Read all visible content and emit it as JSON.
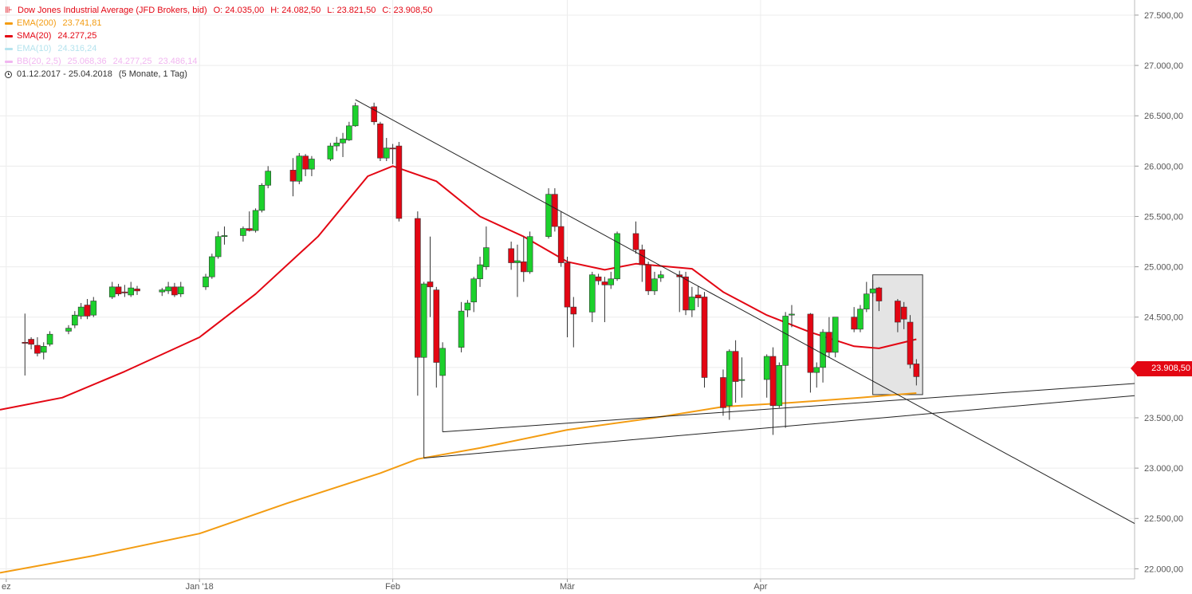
{
  "legend": {
    "title": "Dow Jones Industrial Average (JFD Brokers, bid)",
    "title_color": "#e30613",
    "ohlc": [
      {
        "label": "O:",
        "value": "24.035,00"
      },
      {
        "label": "H:",
        "value": "24.082,50"
      },
      {
        "label": "L:",
        "value": "23.821,50"
      },
      {
        "label": "C:",
        "value": "23.908,50"
      }
    ],
    "indicators": [
      {
        "name": "EMA(200)",
        "values": [
          "23.741,81"
        ],
        "color": "#f39c12"
      },
      {
        "name": "SMA(20)",
        "values": [
          "24.277,25"
        ],
        "color": "#e30613"
      },
      {
        "name": "EMA(10)",
        "values": [
          "24.316,24"
        ],
        "color": "#b5e3ee"
      },
      {
        "name": "BB(20, 2,5)",
        "values": [
          "25.068,36",
          "24.277,25",
          "23.486,14"
        ],
        "color": "#f1b6f0"
      }
    ],
    "period": "01.12.2017 - 25.04.2018",
    "period_detail": "(5 Monate, 1 Tag)"
  },
  "price_tag": "23.908,50",
  "chart_data": {
    "type": "candlestick",
    "y_axis": {
      "ticks": [
        22000,
        22500,
        23000,
        23500,
        24000,
        24500,
        25000,
        25500,
        26000,
        26500,
        27000,
        27500
      ],
      "tick_labels": [
        "22.000,00",
        "22.500,00",
        "23.000,00",
        "23.500,00",
        "24.000,00",
        "24.500,00",
        "25.000,00",
        "25.500,00",
        "26.000,00",
        "26.500,00",
        "27.000,00",
        "27.500,00"
      ],
      "ylim": [
        21900,
        27650
      ],
      "position": "right"
    },
    "x_axis": {
      "tick_labels": [
        "ez",
        "Jan '18",
        "Feb",
        "Mär",
        "Apr"
      ],
      "tick_dates": [
        "2017-12-01",
        "2018-01-01",
        "2018-02-01",
        "2018-03-01",
        "2018-04-01"
      ],
      "range": [
        "2017-11-30",
        "2018-05-31"
      ]
    },
    "grid": true,
    "candles": [
      {
        "date": "2017-12-04",
        "o": 24250,
        "h": 24535,
        "l": 23920,
        "c": 24240
      },
      {
        "date": "2017-12-05",
        "o": 24280,
        "h": 24300,
        "l": 24180,
        "c": 24230
      },
      {
        "date": "2017-12-06",
        "o": 24220,
        "h": 24300,
        "l": 24110,
        "c": 24140
      },
      {
        "date": "2017-12-07",
        "o": 24150,
        "h": 24250,
        "l": 24080,
        "c": 24210
      },
      {
        "date": "2017-12-08",
        "o": 24230,
        "h": 24360,
        "l": 24210,
        "c": 24330
      },
      {
        "date": "2017-12-11",
        "o": 24360,
        "h": 24420,
        "l": 24330,
        "c": 24390
      },
      {
        "date": "2017-12-12",
        "o": 24420,
        "h": 24560,
        "l": 24390,
        "c": 24520
      },
      {
        "date": "2017-12-13",
        "o": 24510,
        "h": 24640,
        "l": 24480,
        "c": 24600
      },
      {
        "date": "2017-12-14",
        "o": 24620,
        "h": 24680,
        "l": 24480,
        "c": 24510
      },
      {
        "date": "2017-12-15",
        "o": 24520,
        "h": 24700,
        "l": 24500,
        "c": 24660
      },
      {
        "date": "2017-12-18",
        "o": 24700,
        "h": 24850,
        "l": 24680,
        "c": 24800
      },
      {
        "date": "2017-12-19",
        "o": 24800,
        "h": 24830,
        "l": 24710,
        "c": 24730
      },
      {
        "date": "2017-12-20",
        "o": 24750,
        "h": 24820,
        "l": 24700,
        "c": 24740
      },
      {
        "date": "2017-12-21",
        "o": 24720,
        "h": 24850,
        "l": 24700,
        "c": 24790
      },
      {
        "date": "2017-12-22",
        "o": 24780,
        "h": 24810,
        "l": 24720,
        "c": 24760
      },
      {
        "date": "2017-12-26",
        "o": 24750,
        "h": 24790,
        "l": 24710,
        "c": 24770
      },
      {
        "date": "2017-12-27",
        "o": 24760,
        "h": 24850,
        "l": 24730,
        "c": 24800
      },
      {
        "date": "2017-12-28",
        "o": 24800,
        "h": 24840,
        "l": 24700,
        "c": 24720
      },
      {
        "date": "2017-12-29",
        "o": 24730,
        "h": 24850,
        "l": 24700,
        "c": 24800
      },
      {
        "date": "2018-01-02",
        "o": 24800,
        "h": 24930,
        "l": 24770,
        "c": 24900
      },
      {
        "date": "2018-01-03",
        "o": 24900,
        "h": 25130,
        "l": 24880,
        "c": 25100
      },
      {
        "date": "2018-01-04",
        "o": 25100,
        "h": 25350,
        "l": 25080,
        "c": 25300
      },
      {
        "date": "2018-01-05",
        "o": 25300,
        "h": 25400,
        "l": 25220,
        "c": 25310
      },
      {
        "date": "2018-01-08",
        "o": 25310,
        "h": 25400,
        "l": 25250,
        "c": 25380
      },
      {
        "date": "2018-01-09",
        "o": 25380,
        "h": 25550,
        "l": 25350,
        "c": 25360
      },
      {
        "date": "2018-01-10",
        "o": 25360,
        "h": 25580,
        "l": 25340,
        "c": 25560
      },
      {
        "date": "2018-01-11",
        "o": 25560,
        "h": 25830,
        "l": 25540,
        "c": 25810
      },
      {
        "date": "2018-01-12",
        "o": 25810,
        "h": 26000,
        "l": 25780,
        "c": 25950
      },
      {
        "date": "2018-01-16",
        "o": 25960,
        "h": 26080,
        "l": 25700,
        "c": 25850
      },
      {
        "date": "2018-01-17",
        "o": 25850,
        "h": 26130,
        "l": 25820,
        "c": 26100
      },
      {
        "date": "2018-01-18",
        "o": 26100,
        "h": 26120,
        "l": 25900,
        "c": 25970
      },
      {
        "date": "2018-01-19",
        "o": 25970,
        "h": 26100,
        "l": 25900,
        "c": 26070
      },
      {
        "date": "2018-01-22",
        "o": 26070,
        "h": 26230,
        "l": 26050,
        "c": 26200
      },
      {
        "date": "2018-01-23",
        "o": 26200,
        "h": 26290,
        "l": 26150,
        "c": 26230
      },
      {
        "date": "2018-01-24",
        "o": 26230,
        "h": 26330,
        "l": 26090,
        "c": 26270
      },
      {
        "date": "2018-01-25",
        "o": 26260,
        "h": 26440,
        "l": 26250,
        "c": 26400
      },
      {
        "date": "2018-01-26",
        "o": 26400,
        "h": 26630,
        "l": 26390,
        "c": 26600
      },
      {
        "date": "2018-01-29",
        "o": 26590,
        "h": 26630,
        "l": 26410,
        "c": 26440
      },
      {
        "date": "2018-01-30",
        "o": 26420,
        "h": 26440,
        "l": 26050,
        "c": 26080
      },
      {
        "date": "2018-01-31",
        "o": 26080,
        "h": 26280,
        "l": 26050,
        "c": 26180
      },
      {
        "date": "2018-02-01",
        "o": 26180,
        "h": 26220,
        "l": 26020,
        "c": 26170
      },
      {
        "date": "2018-02-02",
        "o": 26200,
        "h": 26240,
        "l": 25450,
        "c": 25480
      },
      {
        "date": "2018-02-05",
        "o": 25480,
        "h": 25550,
        "l": 23720,
        "c": 24100
      },
      {
        "date": "2018-02-06",
        "o": 24100,
        "h": 24850,
        "l": 23100,
        "c": 24830
      },
      {
        "date": "2018-02-07",
        "o": 24850,
        "h": 25300,
        "l": 24500,
        "c": 24800
      },
      {
        "date": "2018-02-08",
        "o": 24770,
        "h": 24800,
        "l": 23800,
        "c": 24050
      },
      {
        "date": "2018-02-09",
        "o": 23920,
        "h": 24250,
        "l": 23360,
        "c": 24190
      },
      {
        "date": "2018-02-12",
        "o": 24200,
        "h": 24650,
        "l": 24150,
        "c": 24560
      },
      {
        "date": "2018-02-13",
        "o": 24570,
        "h": 24670,
        "l": 24500,
        "c": 24640
      },
      {
        "date": "2018-02-14",
        "o": 24650,
        "h": 24900,
        "l": 24550,
        "c": 24880
      },
      {
        "date": "2018-02-15",
        "o": 24880,
        "h": 25100,
        "l": 24800,
        "c": 25020
      },
      {
        "date": "2018-02-16",
        "o": 25000,
        "h": 25400,
        "l": 24970,
        "c": 25190
      },
      {
        "date": "2018-02-20",
        "o": 25180,
        "h": 25250,
        "l": 24970,
        "c": 25040
      },
      {
        "date": "2018-02-21",
        "o": 25040,
        "h": 25220,
        "l": 24700,
        "c": 25060
      },
      {
        "date": "2018-02-22",
        "o": 25050,
        "h": 25300,
        "l": 24850,
        "c": 24950
      },
      {
        "date": "2018-02-23",
        "o": 24950,
        "h": 25350,
        "l": 24930,
        "c": 25300
      },
      {
        "date": "2018-02-26",
        "o": 25300,
        "h": 25780,
        "l": 25280,
        "c": 25720
      },
      {
        "date": "2018-02-27",
        "o": 25720,
        "h": 25780,
        "l": 25350,
        "c": 25400
      },
      {
        "date": "2018-02-28",
        "o": 25400,
        "h": 25550,
        "l": 25000,
        "c": 25040
      },
      {
        "date": "2018-03-01",
        "o": 25040,
        "h": 25100,
        "l": 24300,
        "c": 24600
      },
      {
        "date": "2018-03-02",
        "o": 24600,
        "h": 24700,
        "l": 24200,
        "c": 24530
      },
      {
        "date": "2018-03-05",
        "o": 24550,
        "h": 24950,
        "l": 24450,
        "c": 24920
      },
      {
        "date": "2018-03-06",
        "o": 24900,
        "h": 24930,
        "l": 24820,
        "c": 24860
      },
      {
        "date": "2018-03-07",
        "o": 24850,
        "h": 24900,
        "l": 24450,
        "c": 24820
      },
      {
        "date": "2018-03-08",
        "o": 24820,
        "h": 24950,
        "l": 24780,
        "c": 24880
      },
      {
        "date": "2018-03-09",
        "o": 24880,
        "h": 25350,
        "l": 24860,
        "c": 25330
      },
      {
        "date": "2018-03-12",
        "o": 25330,
        "h": 25450,
        "l": 25130,
        "c": 25170
      },
      {
        "date": "2018-03-13",
        "o": 25170,
        "h": 25220,
        "l": 24850,
        "c": 25020
      },
      {
        "date": "2018-03-14",
        "o": 25020,
        "h": 25050,
        "l": 24720,
        "c": 24760
      },
      {
        "date": "2018-03-15",
        "o": 24760,
        "h": 24950,
        "l": 24720,
        "c": 24880
      },
      {
        "date": "2018-03-16",
        "o": 24890,
        "h": 24960,
        "l": 24850,
        "c": 24920
      },
      {
        "date": "2018-03-19",
        "o": 24920,
        "h": 24960,
        "l": 24550,
        "c": 24900
      },
      {
        "date": "2018-03-20",
        "o": 24900,
        "h": 24950,
        "l": 24520,
        "c": 24570
      },
      {
        "date": "2018-03-21",
        "o": 24570,
        "h": 24800,
        "l": 24500,
        "c": 24700
      },
      {
        "date": "2018-03-22",
        "o": 24720,
        "h": 24810,
        "l": 24600,
        "c": 24690
      },
      {
        "date": "2018-03-23",
        "o": 24700,
        "h": 24750,
        "l": 23800,
        "c": 23900
      },
      {
        "date": "2018-03-26",
        "o": 23900,
        "h": 23980,
        "l": 23520,
        "c": 23600
      },
      {
        "date": "2018-03-27",
        "o": 23620,
        "h": 24180,
        "l": 23480,
        "c": 24160
      },
      {
        "date": "2018-03-28",
        "o": 24160,
        "h": 24270,
        "l": 23650,
        "c": 23860
      },
      {
        "date": "2018-03-29",
        "o": 23870,
        "h": 24100,
        "l": 23700,
        "c": 23880
      },
      {
        "date": "2018-04-02",
        "o": 23880,
        "h": 24130,
        "l": 23700,
        "c": 24110
      },
      {
        "date": "2018-04-03",
        "o": 24110,
        "h": 24200,
        "l": 23330,
        "c": 23620
      },
      {
        "date": "2018-04-04",
        "o": 23620,
        "h": 24050,
        "l": 23600,
        "c": 24020
      },
      {
        "date": "2018-04-05",
        "o": 24020,
        "h": 24550,
        "l": 23400,
        "c": 24510
      },
      {
        "date": "2018-04-06",
        "o": 24520,
        "h": 24620,
        "l": 24400,
        "c": 24530
      },
      {
        "date": "2018-04-09",
        "o": 24530,
        "h": 24540,
        "l": 23750,
        "c": 23950
      },
      {
        "date": "2018-04-10",
        "o": 23950,
        "h": 24050,
        "l": 23800,
        "c": 24000
      },
      {
        "date": "2018-04-11",
        "o": 24000,
        "h": 24380,
        "l": 23850,
        "c": 24350
      },
      {
        "date": "2018-04-12",
        "o": 24350,
        "h": 24500,
        "l": 24100,
        "c": 24150
      },
      {
        "date": "2018-04-13",
        "o": 24150,
        "h": 24500,
        "l": 24100,
        "c": 24500
      },
      {
        "date": "2018-04-16",
        "o": 24500,
        "h": 24600,
        "l": 24350,
        "c": 24380
      },
      {
        "date": "2018-04-17",
        "o": 24380,
        "h": 24620,
        "l": 24350,
        "c": 24580
      },
      {
        "date": "2018-04-18",
        "o": 24580,
        "h": 24850,
        "l": 24550,
        "c": 24730
      },
      {
        "date": "2018-04-19",
        "o": 24740,
        "h": 24870,
        "l": 24700,
        "c": 24780
      },
      {
        "date": "2018-04-20",
        "o": 24790,
        "h": 24800,
        "l": 24560,
        "c": 24660
      },
      {
        "date": "2018-04-23",
        "o": 24660,
        "h": 24680,
        "l": 24350,
        "c": 24450
      },
      {
        "date": "2018-04-24",
        "o": 24600,
        "h": 24650,
        "l": 24380,
        "c": 24480
      },
      {
        "date": "2018-04-25",
        "o": 24450,
        "h": 24520,
        "l": 23990,
        "c": 24030
      },
      {
        "date": "2018-04-26",
        "o": 24035,
        "h": 24082.5,
        "l": 23821.5,
        "c": 23908.5
      }
    ],
    "indicators": [
      {
        "name": "EMA(200)",
        "color": "#f39c12",
        "points": [
          [
            "2017-11-30",
            21960
          ],
          [
            "2017-12-15",
            22130
          ],
          [
            "2018-01-01",
            22350
          ],
          [
            "2018-01-15",
            22650
          ],
          [
            "2018-01-30",
            22950
          ],
          [
            "2018-02-05",
            23090
          ],
          [
            "2018-02-15",
            23200
          ],
          [
            "2018-03-01",
            23380
          ],
          [
            "2018-03-15",
            23500
          ],
          [
            "2018-03-26",
            23610
          ],
          [
            "2018-04-06",
            23650
          ],
          [
            "2018-04-17",
            23700
          ],
          [
            "2018-04-26",
            23745
          ]
        ]
      },
      {
        "name": "SMA(20)",
        "color": "#e30613",
        "points": [
          [
            "2017-11-30",
            23580
          ],
          [
            "2017-12-10",
            23700
          ],
          [
            "2017-12-20",
            23960
          ],
          [
            "2018-01-01",
            24300
          ],
          [
            "2018-01-10",
            24730
          ],
          [
            "2018-01-20",
            25300
          ],
          [
            "2018-01-28",
            25900
          ],
          [
            "2018-02-01",
            26000
          ],
          [
            "2018-02-08",
            25850
          ],
          [
            "2018-02-15",
            25500
          ],
          [
            "2018-02-22",
            25300
          ],
          [
            "2018-03-01",
            25050
          ],
          [
            "2018-03-07",
            24970
          ],
          [
            "2018-03-12",
            25030
          ],
          [
            "2018-03-21",
            24980
          ],
          [
            "2018-03-26",
            24750
          ],
          [
            "2018-04-02",
            24520
          ],
          [
            "2018-04-09",
            24350
          ],
          [
            "2018-04-16",
            24210
          ],
          [
            "2018-04-20",
            24190
          ],
          [
            "2018-04-26",
            24280
          ]
        ]
      }
    ],
    "trendlines": [
      {
        "from": [
          "2018-01-26",
          26660
        ],
        "to": [
          "2018-05-31",
          22450
        ]
      },
      {
        "from": [
          "2018-02-06",
          23100
        ],
        "to": [
          "2018-05-31",
          23720
        ]
      },
      {
        "from": [
          "2018-02-09",
          23360
        ],
        "to": [
          "2018-05-31",
          23840
        ]
      }
    ],
    "highlight_box": {
      "from": "2018-04-19",
      "to": "2018-04-27",
      "y_from": 23730,
      "y_to": 24920
    },
    "colors": {
      "up": "#1cd12c",
      "down": "#e30613",
      "wick": "#333333"
    }
  }
}
